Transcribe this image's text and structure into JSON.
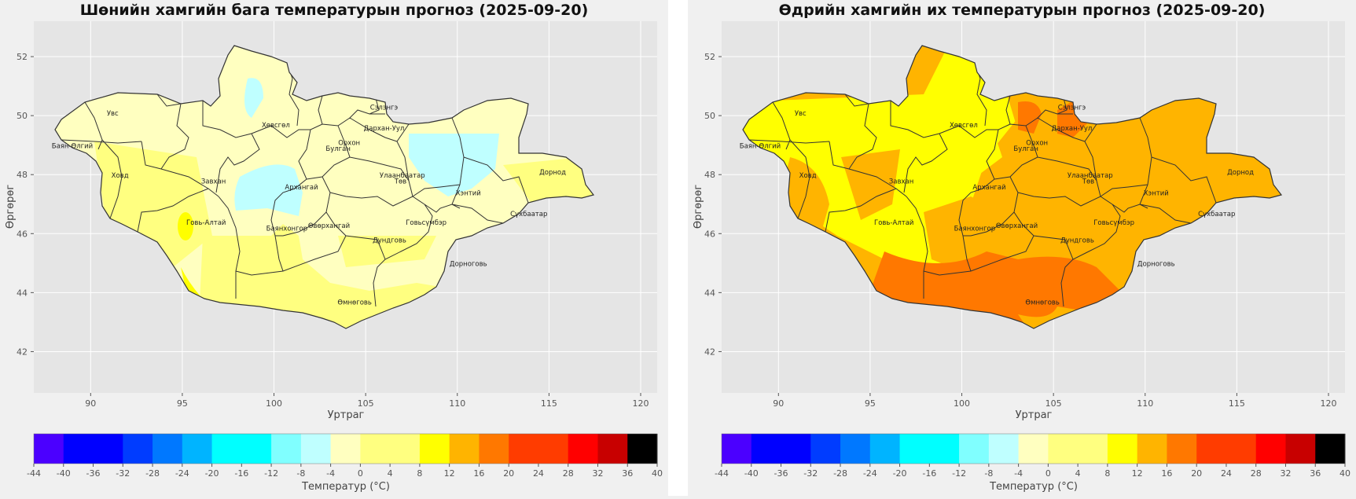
{
  "colors": {
    "scale": [
      "#4b00ff",
      "#0000ff",
      "#0000ff",
      "#003cff",
      "#0078ff",
      "#00b4ff",
      "#00ffff",
      "#00ffff",
      "#80ffff",
      "#bfffff",
      "#ffffc0",
      "#ffff80",
      "#ffff80",
      "#ffff00",
      "#ffb400",
      "#ff7800",
      "#ff3c00",
      "#ff3c00",
      "#ff0000",
      "#c80000"
    ],
    "plot_bg": "#e5e5e5",
    "light_yellow": "#ffffc0",
    "yellow": "#ffff80",
    "bright_yellow": "#ffff00",
    "light_cyan": "#bfffff",
    "amber": "#ffb400",
    "orange": "#ff7800",
    "red_orange": "#ff3c00"
  },
  "colorbar": {
    "ticks": [
      -44,
      -40,
      -36,
      -32,
      -28,
      -24,
      -20,
      -16,
      -12,
      -8,
      -4,
      0,
      4,
      8,
      12,
      16,
      20,
      24,
      28,
      32,
      36,
      40
    ],
    "label": "Температур (°C)"
  },
  "maps": [
    {
      "title": "Шөнийн хамгийн бага температурын прогноз (2025-09-20)",
      "xlabel": "Уртраг",
      "ylabel": "Өргөрөг",
      "xticks": [
        90,
        95,
        100,
        105,
        110,
        115,
        120
      ],
      "yticks": [
        42,
        44,
        46,
        48,
        50,
        52
      ],
      "xlim": [
        86.9,
        120.9
      ],
      "ylim": [
        40.6,
        53.2
      ]
    },
    {
      "title": "Өдрийн хамгийн их температурын прогноз (2025-09-20)",
      "xlabel": "Уртраг",
      "ylabel": "Өргөрөг",
      "xticks": [
        90,
        95,
        100,
        105,
        110,
        115,
        120
      ],
      "yticks": [
        42,
        44,
        46,
        48,
        50,
        52
      ],
      "xlim": [
        86.9,
        120.9
      ],
      "ylim": [
        40.6,
        53.2
      ]
    }
  ],
  "provinces": [
    {
      "name": "Увс",
      "lon": 91.2,
      "lat": 50.0
    },
    {
      "name": "Баян-Өлгий",
      "lon": 89.0,
      "lat": 48.9
    },
    {
      "name": "Ховд",
      "lon": 91.6,
      "lat": 47.9
    },
    {
      "name": "Завхан",
      "lon": 96.7,
      "lat": 47.7
    },
    {
      "name": "Хөвсгөл",
      "lon": 100.1,
      "lat": 49.6
    },
    {
      "name": "Архангай",
      "lon": 101.5,
      "lat": 47.5
    },
    {
      "name": "Говь-Алтай",
      "lon": 96.3,
      "lat": 46.3
    },
    {
      "name": "Баянхонгор",
      "lon": 100.7,
      "lat": 46.1
    },
    {
      "name": "Өвөрхангай",
      "lon": 103.0,
      "lat": 46.2
    },
    {
      "name": "Булган",
      "lon": 103.5,
      "lat": 48.8
    },
    {
      "name": "Орхон",
      "lon": 104.1,
      "lat": 49.0
    },
    {
      "name": "Сэлэнгэ",
      "lon": 106.0,
      "lat": 50.2
    },
    {
      "name": "Дархан-Уул",
      "lon": 106.0,
      "lat": 49.5
    },
    {
      "name": "Улаанбаатар",
      "lon": 107.0,
      "lat": 47.9
    },
    {
      "name": "Төв",
      "lon": 106.9,
      "lat": 47.7
    },
    {
      "name": "Хэнтий",
      "lon": 110.6,
      "lat": 47.3
    },
    {
      "name": "Дорнод",
      "lon": 115.2,
      "lat": 48.0
    },
    {
      "name": "Сүхбаатар",
      "lon": 113.9,
      "lat": 46.6
    },
    {
      "name": "Говьсүмбэр",
      "lon": 108.3,
      "lat": 46.3
    },
    {
      "name": "Дундговь",
      "lon": 106.3,
      "lat": 45.7
    },
    {
      "name": "Дорноговь",
      "lon": 110.6,
      "lat": 44.9
    },
    {
      "name": "Өмнөговь",
      "lon": 104.4,
      "lat": 43.6
    }
  ]
}
